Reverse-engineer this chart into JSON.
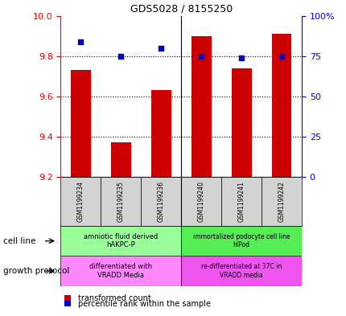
{
  "title": "GDS5028 / 8155250",
  "samples": [
    "GSM1199234",
    "GSM1199235",
    "GSM1199236",
    "GSM1199240",
    "GSM1199241",
    "GSM1199242"
  ],
  "transformed_counts": [
    9.73,
    9.37,
    9.63,
    9.9,
    9.74,
    9.91
  ],
  "percentile_ranks": [
    84,
    75,
    80,
    75,
    74,
    75
  ],
  "ylim_left": [
    9.2,
    10.0
  ],
  "ylim_right": [
    0,
    100
  ],
  "yticks_left": [
    9.2,
    9.4,
    9.6,
    9.8,
    10.0
  ],
  "yticks_right": [
    0,
    25,
    50,
    75,
    100
  ],
  "ytick_labels_right": [
    "0",
    "25",
    "50",
    "75",
    "100%"
  ],
  "bar_color": "#cc0000",
  "dot_color": "#0000cc",
  "cell_line_labels": [
    "amniotic fluid derived\nhAKPC-P",
    "immortalized podocyte cell line\nhIPod"
  ],
  "cell_line_colors_left": "#99ff99",
  "cell_line_colors_right": "#55ee55",
  "growth_protocol_labels": [
    "differentiated with\nVRADD Media",
    "re-differentiated at 37C in\nVRADD media"
  ],
  "growth_protocol_colors_left": "#ff88ff",
  "growth_protocol_colors_right": "#ee55ee",
  "legend_tc": "transformed count",
  "legend_pr": "percentile rank within the sample",
  "cell_line_text": "cell line",
  "growth_protocol_text": "growth protocol"
}
